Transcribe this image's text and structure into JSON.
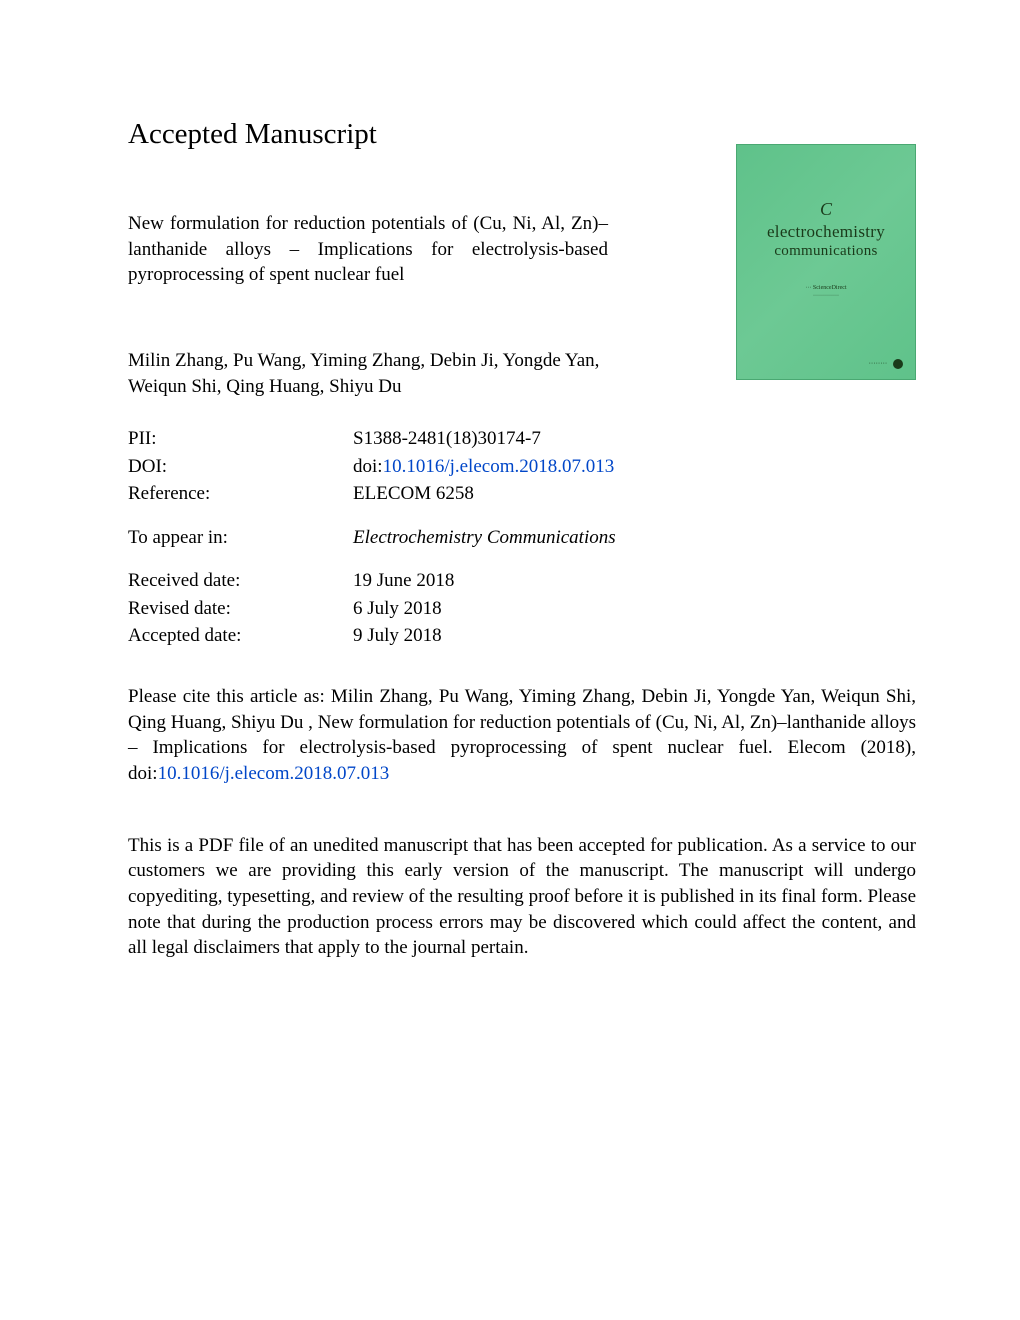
{
  "heading": "Accepted Manuscript",
  "title": "New formulation for reduction potentials of (Cu, Ni, Al, Zn)–lanthanide alloys – Implications for electrolysis-based pyroprocessing of spent nuclear fuel",
  "authors": "Milin Zhang, Pu Wang, Yiming Zhang, Debin Ji, Yongde Yan, Weiqun Shi, Qing Huang, Shiyu Du",
  "cover": {
    "line1": "electrochemistry",
    "line2": "communications"
  },
  "meta": {
    "pii_label": "PII:",
    "pii_value": "S1388-2481(18)30174-7",
    "doi_label": "DOI:",
    "doi_prefix": "doi:",
    "doi_link": "10.1016/j.elecom.2018.07.013",
    "ref_label": "Reference:",
    "ref_value": "ELECOM 6258",
    "appear_label": "To appear in:",
    "appear_value": "Electrochemistry Communications",
    "received_label": "Received date:",
    "received_value": "19 June 2018",
    "revised_label": "Revised date:",
    "revised_value": "6 July 2018",
    "accepted_label": "Accepted date:",
    "accepted_value": "9 July 2018"
  },
  "citation_prefix": "Please cite this article as: Milin Zhang, Pu Wang, Yiming Zhang, Debin Ji, Yongde Yan, Weiqun Shi, Qing Huang, Shiyu Du , New formulation for reduction potentials of (Cu, Ni, Al, Zn)–lanthanide alloys – Implications for electrolysis-based pyroprocessing of spent nuclear fuel. Elecom (2018), doi:",
  "citation_link": "10.1016/j.elecom.2018.07.013",
  "disclaimer": "This is a PDF file of an unedited manuscript that has been accepted for publication. As a service to our customers we are providing this early version of the manuscript. The manuscript will undergo copyediting, typesetting, and review of the resulting proof before it is published in its final form. Please note that during the production process errors may be discovered which could affect the content, and all legal disclaimers that apply to the journal pertain.",
  "colors": {
    "link": "#0046c8",
    "cover_bg": "#6dc994",
    "text": "#000000"
  }
}
